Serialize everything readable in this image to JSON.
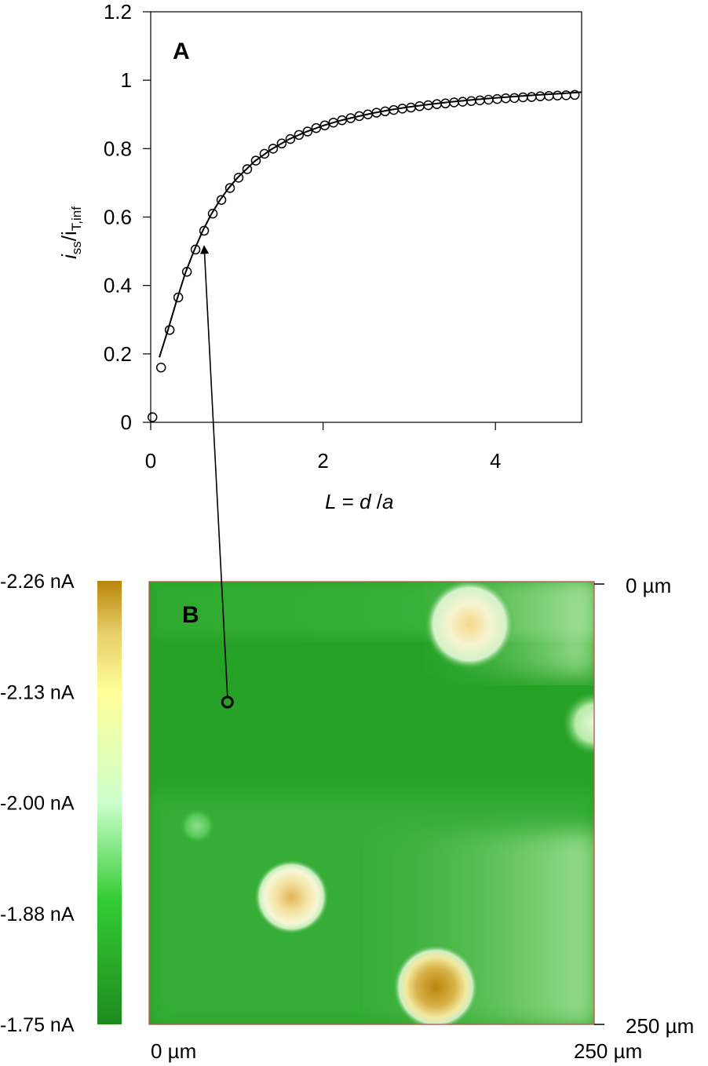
{
  "chart_data": [
    {
      "panel": "A",
      "type": "scatter",
      "xlabel": {
        "prefix": "L",
        "eq": " = ",
        "num": "d",
        "sep": " /",
        "den": "a"
      },
      "ylabel": {
        "main": "i",
        "sub1": "ss",
        "slash": "/i",
        "sub2": "T,inf"
      },
      "xlim": [
        0,
        5
      ],
      "ylim": [
        0,
        1.2
      ],
      "xticks": [
        "0",
        "2",
        "4"
      ],
      "xtick_values": [
        0,
        2,
        4
      ],
      "yticks": [
        "0",
        "0.2",
        "0.4",
        "0.6",
        "0.8",
        "1",
        "1.2"
      ],
      "ytick_values": [
        0,
        0.2,
        0.4,
        0.6,
        0.8,
        1.0,
        1.2
      ],
      "grid": false,
      "series": [
        {
          "style": "open-circle-markers",
          "x": [
            0.02,
            0.12,
            0.22,
            0.32,
            0.42,
            0.52,
            0.62,
            0.72,
            0.82,
            0.92,
            1.02,
            1.12,
            1.22,
            1.32,
            1.42,
            1.52,
            1.62,
            1.72,
            1.82,
            1.92,
            2.02,
            2.12,
            2.22,
            2.32,
            2.42,
            2.52,
            2.62,
            2.72,
            2.82,
            2.92,
            3.02,
            3.12,
            3.22,
            3.32,
            3.42,
            3.52,
            3.62,
            3.72,
            3.82,
            3.92,
            4.02,
            4.12,
            4.22,
            4.32,
            4.42,
            4.52,
            4.62,
            4.72,
            4.82,
            4.92
          ],
          "y": [
            0.015,
            0.16,
            0.27,
            0.365,
            0.44,
            0.505,
            0.56,
            0.61,
            0.65,
            0.685,
            0.715,
            0.74,
            0.765,
            0.785,
            0.8,
            0.815,
            0.828,
            0.84,
            0.85,
            0.86,
            0.868,
            0.876,
            0.883,
            0.889,
            0.895,
            0.9,
            0.905,
            0.909,
            0.913,
            0.917,
            0.92,
            0.924,
            0.927,
            0.93,
            0.932,
            0.935,
            0.937,
            0.939,
            0.941,
            0.943,
            0.945,
            0.947,
            0.948,
            0.95,
            0.951,
            0.953,
            0.954,
            0.955,
            0.956,
            0.957
          ]
        },
        {
          "style": "solid-line",
          "x": [
            0.1,
            0.15,
            0.2,
            0.3,
            0.4,
            0.5,
            0.6,
            0.7,
            0.8,
            0.9,
            1.0,
            1.2,
            1.4,
            1.6,
            1.8,
            2.0,
            2.2,
            2.4,
            2.6,
            2.8,
            3.0,
            3.25,
            3.5,
            3.75,
            4.0,
            4.25,
            4.5,
            4.75,
            5.0
          ],
          "y": [
            0.19,
            0.23,
            0.27,
            0.355,
            0.435,
            0.5,
            0.558,
            0.607,
            0.648,
            0.683,
            0.713,
            0.762,
            0.798,
            0.827,
            0.849,
            0.867,
            0.882,
            0.894,
            0.905,
            0.914,
            0.922,
            0.93,
            0.937,
            0.943,
            0.948,
            0.953,
            0.957,
            0.961,
            0.965
          ]
        }
      ],
      "annotation": {
        "type": "arrow",
        "from_image_point_um": [
          27,
          50
        ],
        "to_data": [
          0.62,
          0.52
        ]
      }
    },
    {
      "panel": "B",
      "type": "heatmap",
      "colorbar": {
        "ticks": [
          "-2.26 nA",
          "-2.13 nA",
          "-2.00 nA",
          "-1.88 nA",
          "-1.75 nA"
        ],
        "values": [
          -2.26,
          -2.13,
          -2.0,
          -1.88,
          -1.75
        ],
        "colors_top_to_bottom": [
          "#b8860b",
          "#ffff99",
          "#ccffcc",
          "#33cc33",
          "#1e8a1e"
        ]
      },
      "x_axis_labels": [
        "0 µm",
        "250 µm"
      ],
      "y_axis_labels": [
        "0 µm",
        "250 µm"
      ],
      "range_um": [
        0,
        250
      ],
      "base_color": "#2aa72a",
      "features": [
        {
          "kind": "hot-spot",
          "x_um": 180,
          "y_um": 24,
          "color": "#f5d88a"
        },
        {
          "kind": "hot-spot",
          "x_um": 80,
          "y_um": 178,
          "color": "#e2b45a"
        },
        {
          "kind": "hot-spot",
          "x_um": 161,
          "y_um": 229,
          "color": "#b88a1f"
        },
        {
          "kind": "bright-spot",
          "x_um": 27,
          "y_um": 138,
          "color": "#8fe08f"
        },
        {
          "kind": "bright-spot",
          "x_um": 250,
          "y_um": 80,
          "color": "#d6f5c6"
        }
      ],
      "probe_marker": {
        "x_um": 44,
        "y_um": 68
      }
    }
  ],
  "panel_labels": {
    "a": "A",
    "b": "B"
  }
}
